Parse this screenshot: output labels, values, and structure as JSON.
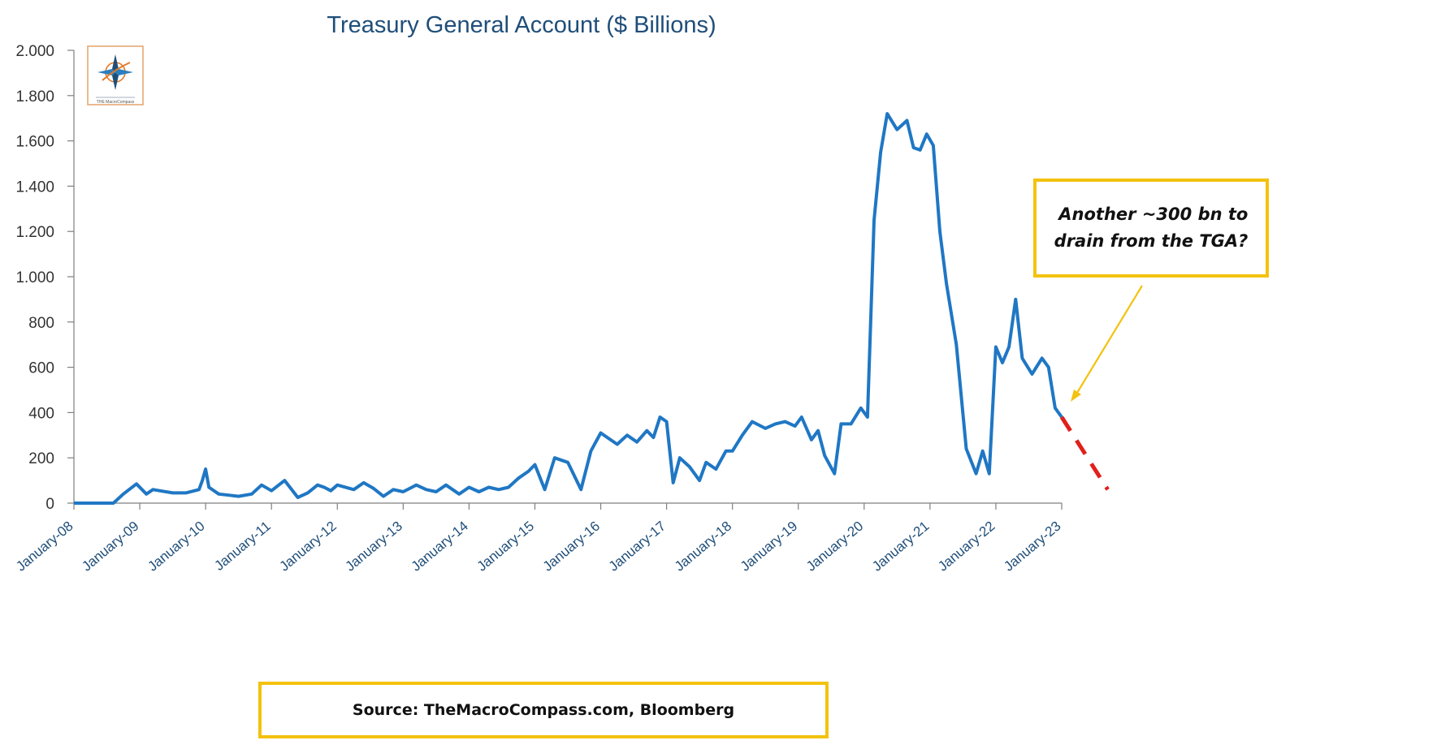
{
  "chart_data": {
    "type": "line",
    "title": "Treasury General Account ($ Billions)",
    "xlabel": "",
    "ylabel": "",
    "ylim": [
      0,
      2000
    ],
    "yticks": [
      0,
      200,
      400,
      600,
      800,
      1000,
      1200,
      1400,
      1600,
      1800,
      2000
    ],
    "ytick_labels": [
      "0",
      "200",
      "400",
      "600",
      "800",
      "1.000",
      "1.200",
      "1.400",
      "1.600",
      "1.800",
      "2.000"
    ],
    "xticks": [
      "January-08",
      "January-09",
      "January-10",
      "January-11",
      "January-12",
      "January-13",
      "January-14",
      "January-15",
      "January-16",
      "January-17",
      "January-18",
      "January-19",
      "January-20",
      "January-21",
      "January-22",
      "January-23"
    ],
    "xlim": [
      2008.0,
      2023.0
    ],
    "grid": false,
    "line_color": "#1f77c4",
    "series": [
      {
        "x": [
          2008.0,
          2008.6,
          2008.75,
          2008.95,
          2009.1,
          2009.2,
          2009.3,
          2009.5,
          2009.7,
          2009.9,
          2009.95,
          2010.0,
          2010.05,
          2010.2,
          2010.35,
          2010.5,
          2010.7,
          2010.85,
          2011.0,
          2011.2,
          2011.4,
          2011.55,
          2011.7,
          2011.8,
          2011.9,
          2012.0,
          2012.25,
          2012.4,
          2012.55,
          2012.7,
          2012.85,
          2013.0,
          2013.2,
          2013.35,
          2013.5,
          2013.65,
          2013.85,
          2014.0,
          2014.15,
          2014.3,
          2014.45,
          2014.6,
          2014.75,
          2014.9,
          2015.0,
          2015.15,
          2015.3,
          2015.5,
          2015.7,
          2015.85,
          2016.0,
          2016.1,
          2016.25,
          2016.4,
          2016.55,
          2016.7,
          2016.8,
          2016.9,
          2017.0,
          2017.1,
          2017.2,
          2017.35,
          2017.5,
          2017.6,
          2017.75,
          2017.9,
          2018.0,
          2018.15,
          2018.3,
          2018.5,
          2018.65,
          2018.8,
          2018.95,
          2019.05,
          2019.2,
          2019.3,
          2019.4,
          2019.55,
          2019.65,
          2019.8,
          2019.95,
          2020.05,
          2020.15,
          2020.25,
          2020.35,
          2020.5,
          2020.65,
          2020.75,
          2020.85,
          2020.95,
          2021.05,
          2021.15,
          2021.25,
          2021.4,
          2021.55,
          2021.7,
          2021.8,
          2021.9,
          2022.0,
          2022.1,
          2022.2,
          2022.3,
          2022.4,
          2022.55,
          2022.7,
          2022.8,
          2022.9,
          2023.0
        ],
        "y": [
          0,
          0,
          40,
          85,
          40,
          60,
          55,
          45,
          45,
          60,
          100,
          150,
          70,
          40,
          35,
          30,
          40,
          80,
          55,
          100,
          25,
          45,
          80,
          70,
          55,
          80,
          60,
          90,
          65,
          30,
          60,
          50,
          80,
          60,
          50,
          80,
          40,
          70,
          50,
          70,
          60,
          70,
          110,
          140,
          170,
          60,
          200,
          180,
          60,
          230,
          310,
          290,
          260,
          300,
          270,
          320,
          290,
          380,
          360,
          90,
          200,
          160,
          100,
          180,
          150,
          230,
          230,
          300,
          360,
          330,
          350,
          360,
          340,
          380,
          280,
          320,
          210,
          130,
          350,
          350,
          420,
          380,
          1250,
          1550,
          1720,
          1650,
          1690,
          1570,
          1560,
          1630,
          1580,
          1200,
          970,
          700,
          240,
          130,
          230,
          130,
          690,
          620,
          690,
          900,
          640,
          570,
          640,
          600,
          420,
          380
        ]
      },
      {
        "x": [
          2023.0,
          2023.7
        ],
        "y": [
          380,
          60
        ],
        "style": "dashed",
        "color": "#e0201b"
      }
    ]
  },
  "annotation": {
    "text_line1": "Another ~300 bn to",
    "text_line2": "drain from the TGA?",
    "border_color": "#f3c20f",
    "arrow_color": "#f3c20f"
  },
  "source": "Source: TheMacroCompass.com, Bloomberg",
  "logo": {
    "icon": "compass-rose-logo",
    "caption": "THE MacroCompass"
  }
}
